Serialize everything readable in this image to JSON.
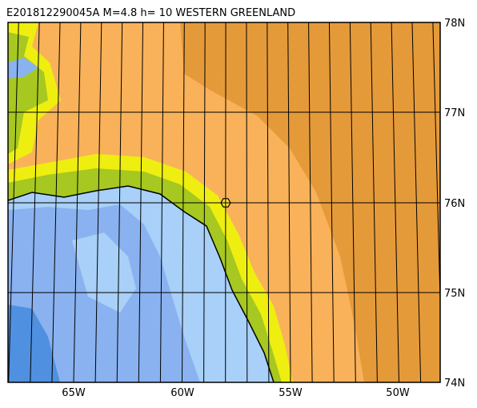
{
  "title": "E201812290045A M=4.8 h= 10 WESTERN GREENLAND",
  "lat_labels": [
    "78N",
    "77N",
    "76N",
    "75N",
    "74N"
  ],
  "lon_labels": [
    "65W",
    "60W",
    "55W",
    "50W"
  ]
}
